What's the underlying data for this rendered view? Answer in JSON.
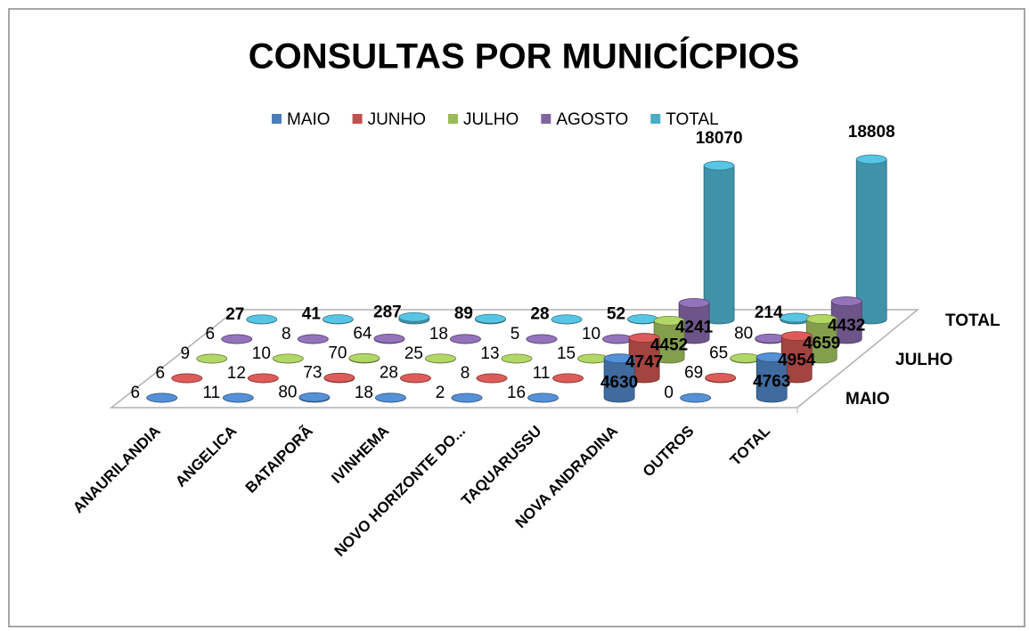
{
  "chart_data": {
    "type": "bar3d",
    "title": "CONSULTAS POR MUNICÍCPIOS",
    "categories": [
      "ANAURILANDIA",
      "ANGELICA",
      "BATAIPORÃ",
      "IVINHEMA",
      "NOVO HORIZONTE DO...",
      "TAQUARUSSU",
      "NOVA ANDRADINA",
      "OUTROS",
      "TOTAL"
    ],
    "series": [
      {
        "name": "MAIO",
        "color": "#4a7ebb",
        "values": [
          6,
          11,
          80,
          18,
          2,
          16,
          4630,
          0,
          4763
        ]
      },
      {
        "name": "JUNHO",
        "color": "#c0504d",
        "values": [
          6,
          12,
          73,
          28,
          8,
          11,
          4747,
          69,
          4954
        ]
      },
      {
        "name": "JULHO",
        "color": "#9bbb59",
        "values": [
          9,
          10,
          70,
          25,
          13,
          15,
          4452,
          65,
          4659
        ]
      },
      {
        "name": "AGOSTO",
        "color": "#8064a2",
        "values": [
          6,
          8,
          64,
          18,
          5,
          10,
          4241,
          80,
          4432
        ]
      },
      {
        "name": "TOTAL",
        "color": "#4bacc6",
        "values": [
          27,
          41,
          287,
          89,
          28,
          52,
          18070,
          214,
          18808
        ]
      }
    ],
    "depth_labels": [
      0,
      2,
      4
    ]
  }
}
